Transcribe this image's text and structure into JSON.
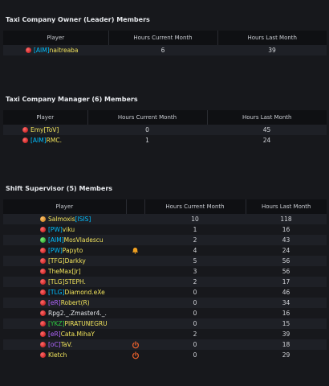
{
  "sections": [
    {
      "title": "Taxi Company Owner (Leader) Members",
      "headers": [
        "Player",
        "Hours Current Month",
        "Hours Last Month"
      ],
      "rows": [
        {
          "tag": "[AIM]",
          "tag_color": "#00bfff",
          "name": "naitreaba",
          "name_color": "#f2e45c",
          "status": "red",
          "current": "6",
          "last": "39"
        }
      ]
    },
    {
      "title": "Taxi Company Manager (6) Members",
      "headers": [
        "Player",
        "Hours Current Month",
        "Hours Last Month"
      ],
      "rows": [
        {
          "tag": "",
          "name": "Emy",
          "name_color": "#f2e45c",
          "suffix": "[ToV]",
          "suffix_color": "#f2e45c",
          "status": "red",
          "current": "0",
          "last": "45"
        },
        {
          "tag": "[AIM]",
          "tag_color": "#00bfff",
          "name": "RMC.",
          "name_color": "#f2e45c",
          "status": "red",
          "current": "1",
          "last": "24"
        }
      ]
    },
    {
      "title": "Shift Supervisor (5) Members",
      "headers": [
        "Player",
        "",
        "Hours Current Month",
        "Hours Last Month"
      ],
      "rows": [
        {
          "tag": "",
          "name": "Salmoxis",
          "suffix": "[ISIS]",
          "suffix_color": "#00bfff",
          "name_color": "#f2e45c",
          "status": "orange",
          "icon": "",
          "current": "10",
          "last": "118"
        },
        {
          "tag": "[PW]",
          "tag_color": "#00bfff",
          "name": "viku",
          "name_color": "#f2e45c",
          "status": "red",
          "icon": "",
          "current": "1",
          "last": "16"
        },
        {
          "tag": "[AIM]",
          "tag_color": "#00bfff",
          "name": "MosVladescu",
          "name_color": "#f2e45c",
          "status": "green",
          "icon": "",
          "current": "2",
          "last": "43"
        },
        {
          "tag": "[PW]",
          "tag_color": "#00bfff",
          "name": "Papyto",
          "name_color": "#f2e45c",
          "status": "red",
          "icon": "bell-icon",
          "current": "4",
          "last": "24"
        },
        {
          "tag": "[TFG]",
          "tag_color": "#f2e45c",
          "name": "Darkky",
          "name_color": "#f2e45c",
          "status": "red",
          "icon": "",
          "current": "5",
          "last": "56"
        },
        {
          "tag": "",
          "name": "TheMax",
          "suffix": "[Jr]",
          "suffix_color": "#f2e45c",
          "name_color": "#f2e45c",
          "status": "red",
          "icon": "",
          "current": "3",
          "last": "56"
        },
        {
          "tag": "[TLG]",
          "tag_color": "#f2e45c",
          "name": "STEPH.",
          "name_color": "#f2e45c",
          "status": "red",
          "icon": "",
          "current": "2",
          "last": "17"
        },
        {
          "tag": "[TLG]",
          "tag_color": "#00bfff",
          "name": "Diamond.eXe",
          "name_color": "#f2e45c",
          "status": "red",
          "icon": "",
          "current": "0",
          "last": "46"
        },
        {
          "tag": "[eR]",
          "tag_color": "#b266ff",
          "name": "Robert",
          "suffix": "(R)",
          "suffix_color": "#f2e45c",
          "name_color": "#f2e45c",
          "status": "red",
          "icon": "",
          "current": "0",
          "last": "34"
        },
        {
          "tag": "",
          "name": "Rpg2._.Zmaster4._.",
          "name_color": "#e6e8ec",
          "status": "red",
          "icon": "",
          "current": "0",
          "last": "16"
        },
        {
          "tag": "[YKZ]",
          "tag_color": "#2ecc40",
          "name": "PIRATUNEGRU",
          "name_color": "#f2e45c",
          "status": "red",
          "icon": "",
          "current": "0",
          "last": "15"
        },
        {
          "tag": "[eR]",
          "tag_color": "#b266ff",
          "name": "Cata.MihaY",
          "name_color": "#f2e45c",
          "status": "red",
          "icon": "",
          "current": "2",
          "last": "39"
        },
        {
          "tag": "[oC]",
          "tag_color": "#b266ff",
          "name": "TaV.",
          "name_color": "#f2e45c",
          "status": "red",
          "icon": "power-icon",
          "current": "0",
          "last": "18"
        },
        {
          "tag": "",
          "name": "Kletch",
          "name_color": "#f2e45c",
          "status": "red",
          "icon": "power-icon",
          "current": "0",
          "last": "29"
        }
      ]
    }
  ]
}
